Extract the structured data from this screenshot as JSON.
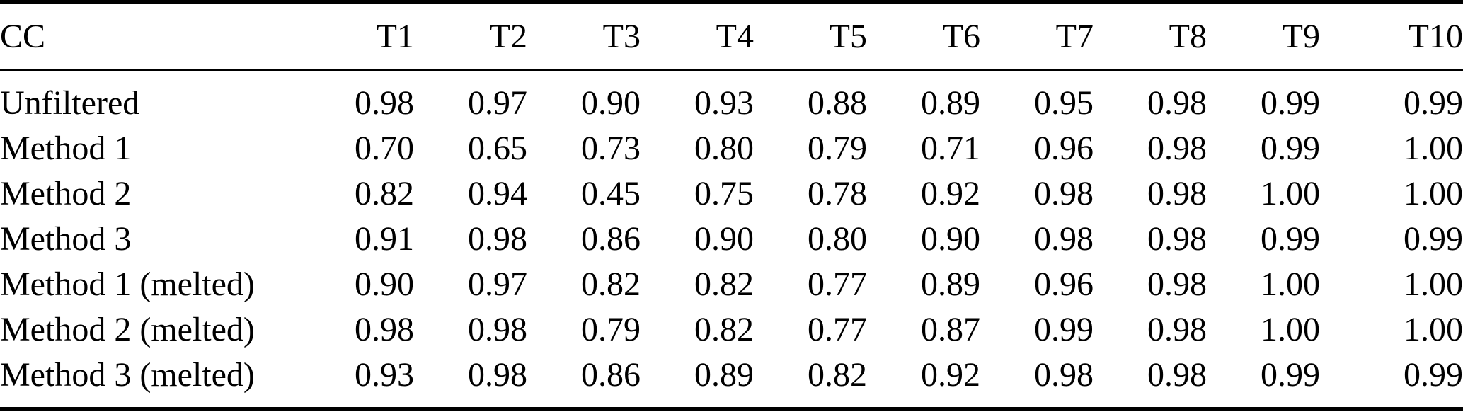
{
  "table": {
    "columns": [
      "CC",
      "T1",
      "T2",
      "T3",
      "T4",
      "T5",
      "T6",
      "T7",
      "T8",
      "T9",
      "T10"
    ],
    "rows": [
      {
        "label": "Unfiltered",
        "values": [
          "0.98",
          "0.97",
          "0.90",
          "0.93",
          "0.88",
          "0.89",
          "0.95",
          "0.98",
          "0.99",
          "0.99"
        ]
      },
      {
        "label": "Method 1",
        "values": [
          "0.70",
          "0.65",
          "0.73",
          "0.80",
          "0.79",
          "0.71",
          "0.96",
          "0.98",
          "0.99",
          "1.00"
        ]
      },
      {
        "label": "Method 2",
        "values": [
          "0.82",
          "0.94",
          "0.45",
          "0.75",
          "0.78",
          "0.92",
          "0.98",
          "0.98",
          "1.00",
          "1.00"
        ]
      },
      {
        "label": "Method 3",
        "values": [
          "0.91",
          "0.98",
          "0.86",
          "0.90",
          "0.80",
          "0.90",
          "0.98",
          "0.98",
          "0.99",
          "0.99"
        ]
      },
      {
        "label": "Method 1 (melted)",
        "values": [
          "0.90",
          "0.97",
          "0.82",
          "0.82",
          "0.77",
          "0.89",
          "0.96",
          "0.98",
          "1.00",
          "1.00"
        ]
      },
      {
        "label": "Method 2 (melted)",
        "values": [
          "0.98",
          "0.98",
          "0.79",
          "0.82",
          "0.77",
          "0.87",
          "0.99",
          "0.98",
          "1.00",
          "1.00"
        ]
      },
      {
        "label": "Method 3 (melted)",
        "values": [
          "0.93",
          "0.98",
          "0.86",
          "0.89",
          "0.82",
          "0.92",
          "0.98",
          "0.98",
          "0.99",
          "0.99"
        ]
      }
    ]
  },
  "colors": {
    "text": "#000000",
    "background": "#ffffff",
    "rule": "#000000"
  }
}
